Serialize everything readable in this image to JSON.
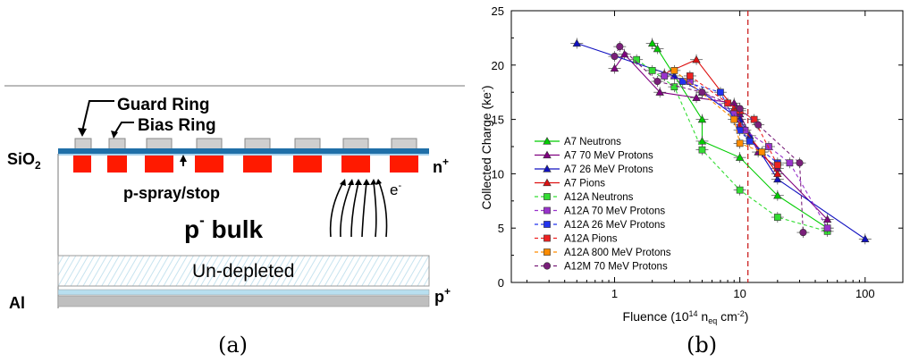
{
  "figure_a": {
    "caption": "(a)",
    "labels": {
      "guard_ring": "Guard Ring",
      "bias_ring": "Bias Ring",
      "sio2": "SiO",
      "sio2_sub": "2",
      "n_plus": "n",
      "n_plus_sup": "+",
      "p_spray": "p-spray/stop",
      "p_bulk": "p",
      "p_bulk_sup": "-",
      "p_bulk_word": " bulk",
      "electron": "e",
      "electron_sup": "-",
      "undepleted": "Un-depleted",
      "al": "Al",
      "p_plus": "p",
      "p_plus_sup": "+"
    },
    "colors": {
      "implant": "#ff1a00",
      "oxide": "#1f6fa8",
      "ring": "#cfcfcf"
    }
  },
  "figure_b": {
    "caption": "(b)",
    "chart_data": {
      "type": "scatter",
      "xlabel": "Fluence (10",
      "xlabel_sup": "14",
      "xlabel_neq": " n",
      "xlabel_sub": "eq",
      "xlabel_end": " cm",
      "xlabel_sup2": "-2",
      "xlabel_close": ")",
      "ylabel": "Collected Charge (ke",
      "ylabel_sup": "-",
      "ylabel_close": ")",
      "xscale": "log",
      "xlim": [
        0.15,
        200
      ],
      "ylim": [
        0,
        25
      ],
      "x_ticks": [
        1,
        10,
        100
      ],
      "x_tick_labels": [
        "1",
        "10",
        "100"
      ],
      "y_ticks": [
        0,
        5,
        10,
        15,
        20,
        25
      ],
      "y_tick_labels": [
        "0",
        "5",
        "10",
        "15",
        "20",
        "25"
      ],
      "vline_x": 11.6,
      "legend_position": "left",
      "series": [
        {
          "name": "A7 Neutrons",
          "color": "#00cc00",
          "marker": "triangle",
          "dash": false,
          "points": [
            [
              2,
              22
            ],
            [
              2.2,
              21.5
            ],
            [
              5,
              15
            ],
            [
              5,
              13
            ],
            [
              10,
              11.5
            ],
            [
              20,
              8
            ],
            [
              50,
              5
            ]
          ]
        },
        {
          "name": "A7 70 MeV Protons",
          "color": "#800080",
          "marker": "triangle",
          "dash": false,
          "points": [
            [
              1,
              19.7
            ],
            [
              1.2,
              21
            ],
            [
              2.3,
              17.5
            ],
            [
              4.5,
              17
            ],
            [
              9,
              16.5
            ],
            [
              10,
              15.5
            ],
            [
              14,
              12
            ],
            [
              20,
              10.5
            ],
            [
              50,
              5.8
            ]
          ]
        },
        {
          "name": "A7 26 MeV Protons",
          "color": "#1010c0",
          "marker": "triangle",
          "dash": false,
          "points": [
            [
              0.5,
              22
            ],
            [
              3,
              19
            ],
            [
              5,
              17.5
            ],
            [
              10,
              15
            ],
            [
              12,
              13.5
            ],
            [
              20,
              9.5
            ],
            [
              100,
              4
            ]
          ]
        },
        {
          "name": "A7 Pions",
          "color": "#dd1111",
          "marker": "triangle",
          "dash": false,
          "points": [
            [
              2.5,
              19.2
            ],
            [
              4.5,
              20.5
            ],
            [
              9,
              16
            ],
            [
              10,
              14.5
            ],
            [
              15,
              12
            ],
            [
              20,
              10
            ]
          ]
        },
        {
          "name": "A12A Neutrons",
          "color": "#33dd33",
          "marker": "square",
          "dash": true,
          "points": [
            [
              1.5,
              20.5
            ],
            [
              2,
              19.5
            ],
            [
              3,
              18
            ],
            [
              5,
              12.2
            ],
            [
              10,
              8.5
            ],
            [
              20,
              6
            ],
            [
              50,
              4.7
            ]
          ]
        },
        {
          "name": "A12A 70 MeV Protons",
          "color": "#9933cc",
          "marker": "square",
          "dash": true,
          "points": [
            [
              2.5,
              19
            ],
            [
              4,
              18.5
            ],
            [
              9,
              15.5
            ],
            [
              11,
              14
            ],
            [
              17,
              12.5
            ],
            [
              25,
              11
            ],
            [
              50,
              5
            ]
          ]
        },
        {
          "name": "A12A  26 MeV Protons",
          "color": "#2233ee",
          "marker": "square",
          "dash": true,
          "points": [
            [
              3.5,
              18.5
            ],
            [
              7,
              17.5
            ],
            [
              10,
              14
            ],
            [
              12,
              13
            ],
            [
              20,
              11
            ]
          ]
        },
        {
          "name": "A12A Pions",
          "color": "#ee2222",
          "marker": "square",
          "dash": true,
          "points": [
            [
              4,
              19
            ],
            [
              8,
              16.5
            ],
            [
              10,
              15.8
            ],
            [
              13,
              15
            ],
            [
              20,
              10.8
            ]
          ]
        },
        {
          "name": "A12A 800 MeV Protons",
          "color": "#ff8c00",
          "marker": "square",
          "dash": true,
          "points": [
            [
              3,
              19.5
            ],
            [
              9,
              15
            ],
            [
              10,
              12.8
            ],
            [
              15,
              12
            ]
          ]
        },
        {
          "name": "A12M 70 MeV Protons",
          "color": "#7a1f7a",
          "marker": "circle",
          "dash": true,
          "points": [
            [
              1,
              20.8
            ],
            [
              1.1,
              21.7
            ],
            [
              2.2,
              18.5
            ],
            [
              5,
              17.5
            ],
            [
              10,
              16
            ],
            [
              14,
              14.5
            ],
            [
              30,
              11
            ],
            [
              32,
              4.6
            ]
          ]
        }
      ]
    }
  }
}
